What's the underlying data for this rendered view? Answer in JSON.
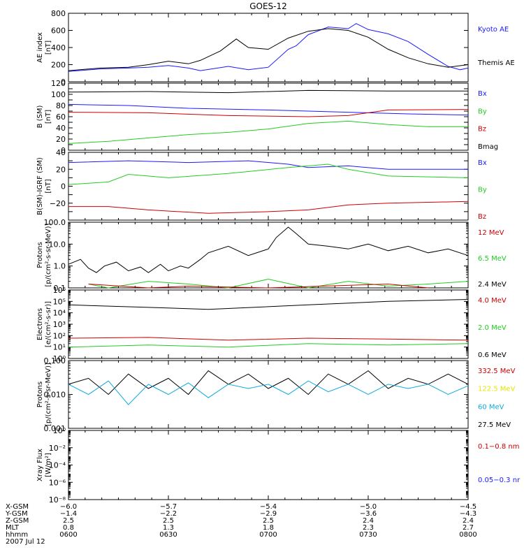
{
  "title": "GOES-12",
  "colors": {
    "black": "#000000",
    "blue": "#1a1aff",
    "green": "#22cc22",
    "red": "#cc0000",
    "yellow": "#e6e600",
    "cyan": "#11aadd"
  },
  "chart_data": [
    {
      "type": "line",
      "ylabel": [
        "AE index",
        "[nT]"
      ],
      "ylim": [
        0,
        800
      ],
      "scale": "linear",
      "yticks": [
        0,
        200,
        400,
        600,
        800
      ],
      "yticklabels": [
        "0",
        "200",
        "400",
        "600",
        "800"
      ],
      "legend": [
        {
          "label": "Kyoto AE",
          "color": "#1a1aff"
        },
        {
          "label": "Themis AE",
          "color": "#000000"
        }
      ],
      "series": [
        {
          "name": "Kyoto AE",
          "color": "#1a1aff",
          "x": [
            0,
            0.08,
            0.15,
            0.2,
            0.25,
            0.3,
            0.33,
            0.4,
            0.45,
            0.5,
            0.55,
            0.57,
            0.6,
            0.65,
            0.7,
            0.72,
            0.75,
            0.8,
            0.85,
            0.9,
            0.95,
            0.98,
            1
          ],
          "y": [
            120,
            150,
            160,
            170,
            190,
            160,
            130,
            180,
            140,
            170,
            380,
            420,
            550,
            640,
            620,
            680,
            610,
            560,
            470,
            320,
            180,
            140,
            160
          ]
        },
        {
          "name": "Themis AE",
          "color": "#000000",
          "x": [
            0,
            0.08,
            0.15,
            0.2,
            0.25,
            0.3,
            0.33,
            0.38,
            0.42,
            0.45,
            0.5,
            0.55,
            0.6,
            0.65,
            0.7,
            0.75,
            0.8,
            0.85,
            0.9,
            0.95,
            1
          ],
          "y": [
            130,
            160,
            170,
            200,
            240,
            210,
            250,
            360,
            500,
            400,
            380,
            510,
            590,
            620,
            600,
            520,
            380,
            280,
            210,
            170,
            200
          ]
        }
      ]
    },
    {
      "type": "line",
      "ylabel": [
        "B (SM)",
        "[nT]"
      ],
      "ylim": [
        0,
        120
      ],
      "scale": "linear",
      "yticks": [
        0,
        10,
        20,
        30,
        40,
        50,
        60,
        70,
        80,
        90,
        100,
        110,
        120
      ],
      "yticklabels": [
        "0",
        "",
        "20",
        "",
        "40",
        "",
        "60",
        "",
        "80",
        "",
        "100",
        "",
        "120"
      ],
      "legend": [
        {
          "label": "Bx",
          "color": "#1a1aff"
        },
        {
          "label": "By",
          "color": "#22cc22"
        },
        {
          "label": "Bz",
          "color": "#cc0000"
        },
        {
          "label": "Bmag",
          "color": "#000000"
        }
      ],
      "series": [
        {
          "name": "Bmag",
          "color": "#000000",
          "x": [
            0,
            0.2,
            0.4,
            0.6,
            0.8,
            1
          ],
          "y": [
            104,
            105,
            103,
            107,
            106,
            106
          ]
        },
        {
          "name": "Bx",
          "color": "#1a1aff",
          "x": [
            0,
            0.15,
            0.3,
            0.5,
            0.7,
            0.85,
            1
          ],
          "y": [
            82,
            80,
            75,
            72,
            68,
            65,
            63
          ]
        },
        {
          "name": "Bz",
          "color": "#cc0000",
          "x": [
            0,
            0.2,
            0.4,
            0.6,
            0.7,
            0.8,
            1
          ],
          "y": [
            68,
            67,
            62,
            60,
            62,
            72,
            73
          ]
        },
        {
          "name": "By",
          "color": "#22cc22",
          "x": [
            0,
            0.1,
            0.2,
            0.3,
            0.4,
            0.5,
            0.6,
            0.7,
            0.8,
            0.9,
            1
          ],
          "y": [
            12,
            16,
            22,
            28,
            32,
            38,
            48,
            52,
            46,
            42,
            42
          ]
        }
      ]
    },
    {
      "type": "line",
      "ylabel": [
        "B(SM)-IGRF (SM)",
        "[nT]"
      ],
      "ylim": [
        -40,
        40
      ],
      "scale": "linear",
      "yticks": [
        -40,
        -30,
        -20,
        -10,
        0,
        10,
        20,
        30,
        40
      ],
      "yticklabels": [
        "",
        "",
        "−20",
        "",
        "0",
        "",
        "20",
        "",
        "40"
      ],
      "legend": [
        {
          "label": "Bx",
          "color": "#1a1aff"
        },
        {
          "label": "By",
          "color": "#22cc22"
        },
        {
          "label": "Bz",
          "color": "#cc0000"
        }
      ],
      "series": [
        {
          "name": "Bx",
          "color": "#1a1aff",
          "x": [
            0,
            0.15,
            0.3,
            0.45,
            0.55,
            0.6,
            0.7,
            0.8,
            1
          ],
          "y": [
            28,
            30,
            28,
            30,
            26,
            22,
            24,
            20,
            20
          ]
        },
        {
          "name": "By",
          "color": "#22cc22",
          "x": [
            0,
            0.1,
            0.15,
            0.25,
            0.4,
            0.55,
            0.65,
            0.7,
            0.8,
            1
          ],
          "y": [
            2,
            5,
            14,
            10,
            15,
            22,
            26,
            20,
            12,
            10
          ]
        },
        {
          "name": "Bz",
          "color": "#cc0000",
          "x": [
            0,
            0.1,
            0.2,
            0.35,
            0.5,
            0.6,
            0.7,
            0.8,
            1
          ],
          "y": [
            -24,
            -24,
            -28,
            -32,
            -30,
            -28,
            -22,
            -20,
            -18
          ]
        }
      ]
    },
    {
      "type": "line",
      "ylabel": [
        "Protons",
        "[p/(cm²-s-sr-MeV)]"
      ],
      "ylim": [
        0.1,
        100
      ],
      "scale": "log",
      "yticks": [
        0.1,
        1,
        10,
        100
      ],
      "yticklabels": [
        "0.1",
        "1.0",
        "10.0",
        "100.0"
      ],
      "legend": [
        {
          "label": "12 MeV",
          "color": "#cc0000"
        },
        {
          "label": "6.5 MeV",
          "color": "#22cc22"
        },
        {
          "label": "2.4 MeV",
          "color": "#000000"
        }
      ],
      "series": [
        {
          "name": "2.4 MeV",
          "color": "#000000",
          "x": [
            0,
            0.03,
            0.05,
            0.07,
            0.09,
            0.12,
            0.15,
            0.18,
            0.2,
            0.23,
            0.25,
            0.28,
            0.3,
            0.33,
            0.35,
            0.4,
            0.45,
            0.5,
            0.52,
            0.55,
            0.57,
            0.6,
            0.65,
            0.7,
            0.75,
            0.8,
            0.85,
            0.9,
            0.95,
            1
          ],
          "y": [
            1.2,
            2.0,
            0.8,
            0.5,
            1.0,
            1.5,
            0.6,
            0.9,
            0.5,
            1.2,
            0.6,
            1.0,
            0.8,
            2.0,
            4.0,
            8.0,
            3.0,
            6.0,
            20,
            60,
            30,
            10,
            8,
            6,
            10,
            5,
            8,
            4,
            6,
            3
          ]
        },
        {
          "name": "6.5 MeV",
          "color": "#22cc22",
          "x": [
            0.05,
            0.1,
            0.2,
            0.3,
            0.4,
            0.5,
            0.6,
            0.7,
            0.8,
            0.9,
            1
          ],
          "y": [
            0.15,
            0.1,
            0.2,
            0.15,
            0.1,
            0.25,
            0.1,
            0.2,
            0.12,
            0.15,
            0.2
          ]
        },
        {
          "name": "12 MeV",
          "color": "#cc0000",
          "x": [
            0.05,
            0.2,
            0.3,
            0.5,
            0.8,
            0.9
          ],
          "y": [
            0.15,
            0.1,
            0.12,
            0.1,
            0.15,
            0.1
          ]
        }
      ]
    },
    {
      "type": "line",
      "ylabel": [
        "Electrons",
        "[e/(cm²-s-sr)]"
      ],
      "ylim": [
        1,
        1000000
      ],
      "scale": "log",
      "yticks": [
        1,
        10,
        100,
        1000,
        10000,
        100000,
        1000000
      ],
      "yticklabels": [
        "10⁰",
        "10¹",
        "10²",
        "10³",
        "10⁴",
        "10⁵",
        "10⁶"
      ],
      "legend": [
        {
          "label": "4.0 MeV",
          "color": "#cc0000"
        },
        {
          "label": "2.0 MeV",
          "color": "#22cc22"
        },
        {
          "label": "0.6 MeV",
          "color": "#000000"
        }
      ],
      "series": [
        {
          "name": "0.6 MeV",
          "color": "#000000",
          "x": [
            0,
            0.2,
            0.35,
            0.6,
            0.8,
            1
          ],
          "y": [
            50000,
            30000,
            20000,
            50000,
            100000,
            150000
          ]
        },
        {
          "name": "4.0 MeV",
          "color": "#cc0000",
          "x": [
            0,
            0.2,
            0.4,
            0.6,
            0.8,
            1
          ],
          "y": [
            60,
            70,
            40,
            60,
            50,
            40
          ]
        },
        {
          "name": "2.0 MeV",
          "color": "#22cc22",
          "x": [
            0,
            0.2,
            0.4,
            0.6,
            0.8,
            1
          ],
          "y": [
            10,
            15,
            10,
            20,
            15,
            20
          ]
        }
      ]
    },
    {
      "type": "line",
      "ylabel": [
        "Protons",
        "[p/(cm²-s-sr-MeV)]"
      ],
      "ylim": [
        0.001,
        0.1
      ],
      "scale": "log",
      "yticks": [
        0.001,
        0.01,
        0.1
      ],
      "yticklabels": [
        "0.001",
        "0.010",
        "0.100"
      ],
      "legend": [
        {
          "label": "332.5 MeV",
          "color": "#cc0000"
        },
        {
          "label": "122.5 MeV",
          "color": "#e6e600"
        },
        {
          "label": "60 MeV",
          "color": "#11aadd"
        },
        {
          "label": "27.5 MeV",
          "color": "#000000"
        }
      ],
      "series": [
        {
          "name": "27.5 MeV",
          "color": "#000000",
          "x": [
            0,
            0.05,
            0.1,
            0.15,
            0.2,
            0.25,
            0.3,
            0.35,
            0.4,
            0.45,
            0.5,
            0.55,
            0.6,
            0.65,
            0.7,
            0.75,
            0.8,
            0.85,
            0.9,
            0.95,
            1
          ],
          "y": [
            0.02,
            0.03,
            0.01,
            0.04,
            0.015,
            0.03,
            0.01,
            0.05,
            0.02,
            0.04,
            0.015,
            0.03,
            0.01,
            0.04,
            0.02,
            0.05,
            0.015,
            0.03,
            0.02,
            0.04,
            0.02
          ]
        },
        {
          "name": "60 MeV",
          "color": "#11aadd",
          "x": [
            0,
            0.05,
            0.1,
            0.15,
            0.2,
            0.25,
            0.3,
            0.35,
            0.4,
            0.45,
            0.5,
            0.55,
            0.6,
            0.65,
            0.7,
            0.75,
            0.8,
            0.85,
            0.9,
            0.95,
            1
          ],
          "y": [
            0.02,
            0.01,
            0.025,
            0.005,
            0.02,
            0.01,
            0.022,
            0.008,
            0.02,
            0.015,
            0.02,
            0.01,
            0.025,
            0.012,
            0.02,
            0.01,
            0.02,
            0.015,
            0.02,
            0.01,
            0.018
          ]
        }
      ]
    },
    {
      "type": "line",
      "ylabel": [
        "Xray Flux",
        "[W/m²]"
      ],
      "ylim": [
        1e-08,
        1
      ],
      "scale": "log",
      "yticks": [
        1e-08,
        1e-06,
        0.0001,
        0.01,
        1
      ],
      "yticklabels": [
        "10⁻⁸",
        "10⁻⁶",
        "10⁻⁴",
        "10⁻²",
        "10⁰"
      ],
      "legend": [
        {
          "label": "0.1−0.8 nm",
          "color": "#cc0000"
        },
        {
          "label": "0.05−0.3 nr",
          "color": "#1a1aff"
        }
      ],
      "series": []
    }
  ],
  "xaxis": {
    "rows": [
      {
        "label": "X-GSM",
        "values": [
          "−6.0",
          "−5.7",
          "−5.4",
          "−5.0",
          "−4.5"
        ]
      },
      {
        "label": "Y-GSM",
        "values": [
          "−1.4",
          "−2.2",
          "−2.9",
          "−3.6",
          "−4.3"
        ]
      },
      {
        "label": "Z-GSM",
        "values": [
          "2.5",
          "2.5",
          "2.5",
          "2.4",
          "2.4"
        ]
      },
      {
        "label": "MLT",
        "values": [
          "0.8",
          "1.3",
          "1.8",
          "2.3",
          "2.7"
        ]
      },
      {
        "label": "hhmm",
        "values": [
          "0600",
          "0630",
          "0700",
          "0730",
          "0800"
        ]
      }
    ],
    "date": "2007 Jul 12"
  }
}
